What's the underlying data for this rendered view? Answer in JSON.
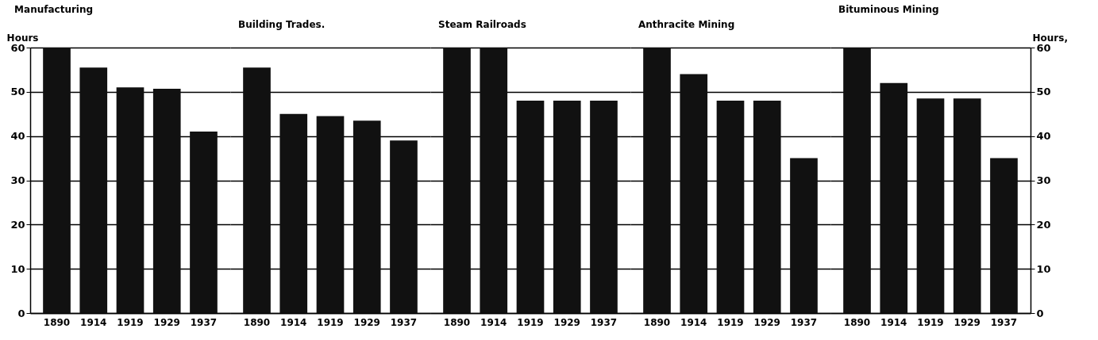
{
  "chart_data": [
    {
      "type": "bar",
      "title": "Manufacturing",
      "ylabel": "Hours",
      "categories": [
        "1890",
        "1914",
        "1919",
        "1929",
        "1937"
      ],
      "values": [
        60,
        55.5,
        51,
        50.7,
        41
      ],
      "color": "#111111",
      "ylim": [
        0,
        60
      ],
      "yticks": [
        0,
        10,
        20,
        30,
        40,
        50,
        60
      ],
      "grid": "y"
    },
    {
      "type": "bar",
      "title": "Building Trades.",
      "categories": [
        "1890",
        "1914",
        "1919",
        "1929",
        "1937"
      ],
      "values": [
        55.5,
        45,
        44.5,
        43.5,
        39
      ],
      "color": "#111111",
      "ylim": [
        0,
        60
      ],
      "yticks": [
        0,
        10,
        20,
        30,
        40,
        50,
        60
      ],
      "grid": "y",
      "tick_labels": "x"
    },
    {
      "type": "bar",
      "title": "Steam Railroads",
      "categories": [
        "1890",
        "1914",
        "1919",
        "1929",
        "1937"
      ],
      "values": [
        60,
        60,
        48,
        48,
        48
      ],
      "color": "#111111",
      "ylim": [
        0,
        60
      ],
      "yticks": [
        0,
        10,
        20,
        30,
        40,
        50,
        60
      ],
      "grid": "y",
      "tick_labels": "x"
    },
    {
      "type": "bar",
      "title": "Anthracite Mining",
      "categories": [
        "1890",
        "1914",
        "1919",
        "1929",
        "1937"
      ],
      "values": [
        60,
        54,
        48,
        48,
        35
      ],
      "color": "#111111",
      "ylim": [
        0,
        60
      ],
      "yticks": [
        0,
        10,
        20,
        30,
        40,
        50,
        60
      ],
      "grid": "y",
      "tick_labels": "x"
    },
    {
      "type": "bar",
      "title": "Bituminous Mining",
      "ylabel": "Hours,",
      "categories": [
        "1890",
        "1914",
        "1919",
        "1929",
        "1937"
      ],
      "values": [
        60,
        52,
        48.5,
        48.5,
        35
      ],
      "color": "#111111",
      "ylim": [
        0,
        60
      ],
      "yticks": [
        0,
        10,
        20,
        30,
        40,
        50,
        60
      ],
      "grid": "y"
    }
  ]
}
